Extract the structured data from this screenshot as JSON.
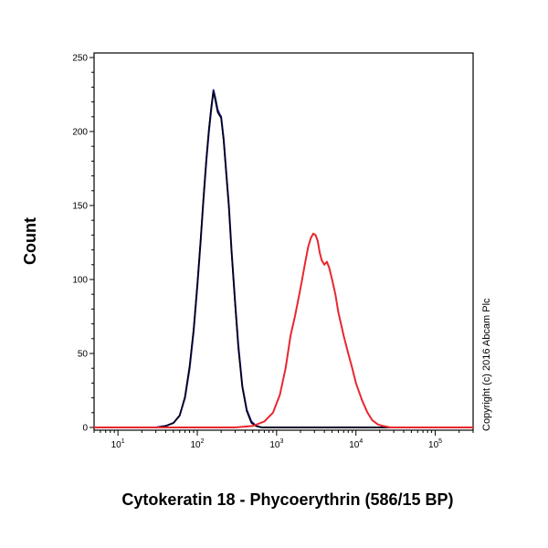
{
  "chart_data": {
    "type": "line",
    "xlabel": "Cytokeratin 18 - Phycoerythrin (586/15 BP)",
    "ylabel": "Count",
    "xscale": "log",
    "xlim": [
      5,
      300000
    ],
    "ylim": [
      0,
      250
    ],
    "yticks": [
      0,
      50,
      100,
      150,
      200,
      250
    ],
    "xticks": [
      {
        "value": 10,
        "base": "10",
        "exp": "1"
      },
      {
        "value": 100,
        "base": "10",
        "exp": "2"
      },
      {
        "value": 1000,
        "base": "10",
        "exp": "3"
      },
      {
        "value": 10000,
        "base": "10",
        "exp": "4"
      },
      {
        "value": 100000,
        "base": "10",
        "exp": "5"
      }
    ],
    "annotations": [
      "Copyright (c) 2016 Abcam Plc"
    ],
    "grid": false,
    "series": [
      {
        "color": "#1a1aa0",
        "x": [
          5,
          30,
          40,
          50,
          60,
          70,
          80,
          90,
          100,
          110,
          120,
          130,
          140,
          150,
          160,
          170,
          180,
          190,
          200,
          215,
          230,
          250,
          270,
          300,
          330,
          370,
          420,
          480,
          550,
          650,
          800,
          1000,
          10000,
          300000
        ],
        "y": [
          0,
          0,
          1,
          3,
          8,
          20,
          40,
          65,
          95,
          125,
          155,
          180,
          200,
          215,
          228,
          222,
          215,
          212,
          210,
          195,
          175,
          150,
          120,
          85,
          55,
          28,
          12,
          4,
          1,
          0,
          0,
          0,
          0,
          0
        ]
      },
      {
        "color": "#000000",
        "x": [
          5,
          30,
          40,
          50,
          60,
          70,
          80,
          90,
          100,
          110,
          120,
          130,
          140,
          150,
          160,
          170,
          180,
          190,
          200,
          215,
          230,
          250,
          270,
          300,
          330,
          370,
          420,
          480,
          550,
          650,
          800,
          1000,
          10000,
          300000
        ],
        "y": [
          0,
          0,
          1,
          3,
          8,
          21,
          42,
          67,
          97,
          127,
          157,
          182,
          202,
          217,
          227,
          220,
          213,
          211,
          209,
          193,
          173,
          148,
          118,
          83,
          53,
          27,
          11,
          3,
          1,
          0,
          0,
          0,
          0,
          0
        ]
      },
      {
        "color": "#e8272f",
        "x": [
          5,
          300,
          500,
          700,
          900,
          1100,
          1300,
          1500,
          1700,
          1900,
          2100,
          2300,
          2500,
          2700,
          2900,
          3100,
          3300,
          3500,
          3700,
          4000,
          4300,
          4600,
          5000,
          5500,
          6000,
          7000,
          8000,
          9000,
          10000,
          12000,
          14000,
          16000,
          19000,
          22000,
          27000,
          35000,
          50000,
          300000
        ],
        "y": [
          0,
          0,
          1,
          4,
          10,
          22,
          40,
          62,
          75,
          88,
          100,
          112,
          122,
          128,
          131,
          130,
          126,
          118,
          113,
          110,
          112,
          108,
          100,
          90,
          78,
          62,
          50,
          40,
          30,
          18,
          10,
          5,
          2,
          1,
          0,
          0,
          0,
          0
        ]
      }
    ]
  }
}
